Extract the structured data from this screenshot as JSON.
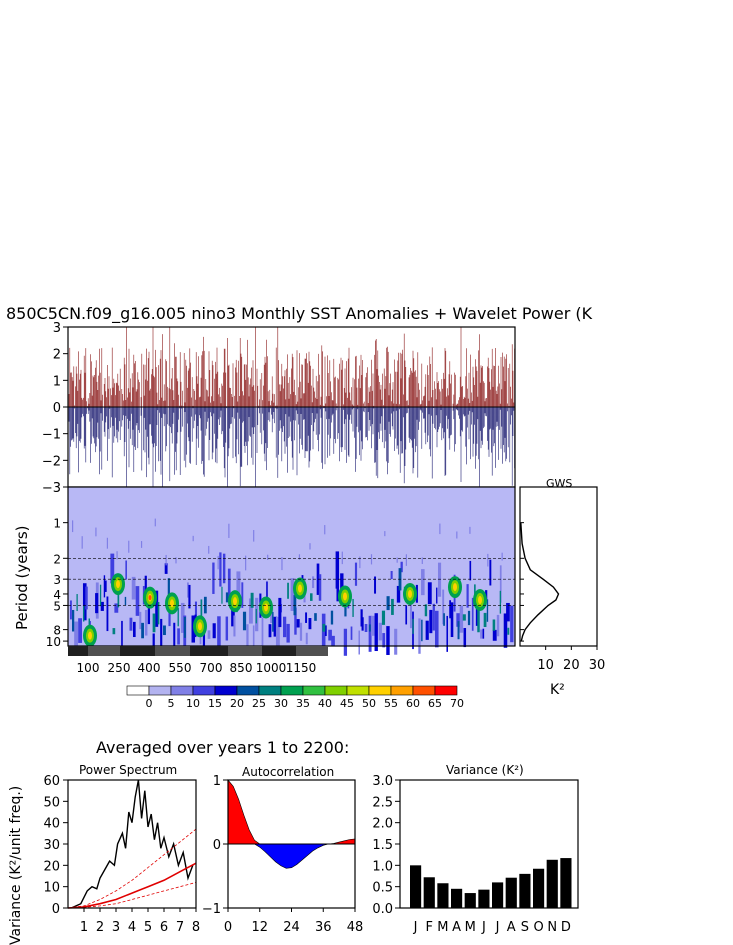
{
  "header": {
    "title": "850C5CN.f09_g16.005 nino3 Monthly SST Anomalies + Wavelet Power (K"
  },
  "bottom_title": "Averaged over years 1 to 2200:",
  "colorbar": {
    "labels": [
      "0",
      "5",
      "10",
      "15",
      "20",
      "25",
      "30",
      "35",
      "40",
      "45",
      "50",
      "55",
      "60",
      "65",
      "70"
    ],
    "colors": [
      "#ffffff",
      "#b3b3f0",
      "#8080e6",
      "#4040e0",
      "#0000d0",
      "#0050a0",
      "#008080",
      "#00a050",
      "#30c040",
      "#80d000",
      "#c0e000",
      "#ffd000",
      "#ffa000",
      "#ff5000",
      "#ff0000"
    ]
  },
  "chart_data": [
    {
      "id": "anomaly_timeseries",
      "type": "line",
      "ylim": [
        -3,
        3
      ],
      "yticks": [
        "3",
        "2",
        "1",
        "0",
        "−1",
        "−2",
        "−3"
      ],
      "colors": {
        "positive": "#8b1a1a",
        "negative": "#1a1a70"
      }
    },
    {
      "id": "wavelet_power",
      "type": "heatmap",
      "ylabel": "Period (years)",
      "yticks": [
        "1",
        "2",
        "3",
        "4",
        "5",
        "8",
        "10"
      ],
      "xticks": [
        "100",
        "250",
        "400",
        "550",
        "700",
        "850",
        "1000",
        "1150"
      ],
      "dashed_periods": [
        2,
        3,
        5
      ]
    },
    {
      "id": "gws",
      "type": "line",
      "title": "GWS",
      "xlabel": "K²",
      "xticks": [
        "10",
        "20",
        "30"
      ],
      "xlim": [
        0,
        30
      ],
      "period": [
        1,
        1.5,
        2,
        2.5,
        3,
        3.5,
        4,
        4.5,
        5,
        6,
        7,
        8,
        9,
        10
      ],
      "power": [
        0.3,
        0.8,
        2.0,
        4.0,
        9.0,
        13.0,
        15.0,
        14.0,
        11.0,
        7.0,
        4.0,
        2.0,
        1.0,
        0.5
      ]
    },
    {
      "id": "power_spectrum",
      "type": "line",
      "title": "Power Spectrum",
      "ylabel": "Variance (K²/unit freq.)",
      "xticks": [
        "1",
        "2",
        "3",
        "4",
        "5",
        "6",
        "7",
        "8"
      ],
      "yticks": [
        "0",
        "10",
        "20",
        "30",
        "40",
        "50",
        "60"
      ],
      "xlim": [
        0,
        8
      ],
      "ylim": [
        0,
        60
      ],
      "series": [
        {
          "x": [
            0.2,
            0.5,
            0.8,
            1.0,
            1.2,
            1.5,
            1.8,
            2.0,
            2.3,
            2.6,
            2.9,
            3.1,
            3.4,
            3.6,
            3.8,
            4.0,
            4.2,
            4.4,
            4.6,
            4.8,
            5.0,
            5.2,
            5.4,
            5.6,
            5.8,
            6.0,
            6.3,
            6.6,
            6.9,
            7.2,
            7.5,
            7.8
          ],
          "y": [
            0,
            1,
            2,
            5,
            8,
            10,
            9,
            14,
            18,
            22,
            20,
            30,
            35,
            28,
            45,
            40,
            52,
            60,
            42,
            55,
            38,
            44,
            32,
            40,
            28,
            33,
            24,
            30,
            20,
            26,
            14,
            20
          ]
        },
        {
          "x": [
            0,
            1,
            2,
            3,
            4,
            5,
            6,
            7,
            8
          ],
          "y": [
            0,
            0.5,
            2,
            4,
            7,
            10,
            13,
            17,
            21
          ]
        },
        {
          "x": [
            0,
            1,
            2,
            3,
            4,
            5,
            6,
            7,
            8
          ],
          "y": [
            0,
            1,
            4,
            8,
            13,
            19,
            25,
            31,
            37
          ]
        },
        {
          "x": [
            0,
            1,
            2,
            3,
            4,
            5,
            6,
            7,
            8
          ],
          "y": [
            0,
            0.3,
            1,
            2,
            4,
            6,
            8,
            10,
            12
          ]
        }
      ]
    },
    {
      "id": "autocorrelation",
      "type": "area",
      "title": "Autocorrelation",
      "xticks": [
        "0",
        "12",
        "24",
        "36",
        "48"
      ],
      "yticks": [
        "1",
        "0",
        "−1"
      ],
      "xlim": [
        0,
        48
      ],
      "ylim": [
        -1,
        1
      ],
      "lag": [
        0,
        2,
        4,
        6,
        8,
        10,
        12,
        14,
        16,
        18,
        20,
        22,
        24,
        26,
        28,
        30,
        32,
        34,
        36,
        38,
        40,
        42,
        44,
        46,
        48
      ],
      "r": [
        1,
        0.9,
        0.7,
        0.45,
        0.22,
        0.06,
        -0.05,
        -0.12,
        -0.2,
        -0.28,
        -0.34,
        -0.38,
        -0.37,
        -0.32,
        -0.25,
        -0.18,
        -0.11,
        -0.06,
        -0.02,
        0.0,
        0.01,
        0.03,
        0.05,
        0.07,
        0.08
      ]
    },
    {
      "id": "monthly_variance",
      "type": "bar",
      "title": "Variance (K²)",
      "categories": [
        "J",
        "F",
        "M",
        "A",
        "M",
        "J",
        "J",
        "A",
        "S",
        "O",
        "N",
        "D"
      ],
      "values": [
        1.0,
        0.72,
        0.58,
        0.45,
        0.35,
        0.43,
        0.6,
        0.71,
        0.8,
        0.92,
        1.13,
        1.17
      ],
      "yticks": [
        "0.0",
        "0.5",
        "1.0",
        "1.5",
        "2.0",
        "2.5",
        "3.0"
      ],
      "ylim": [
        0,
        3
      ]
    }
  ]
}
